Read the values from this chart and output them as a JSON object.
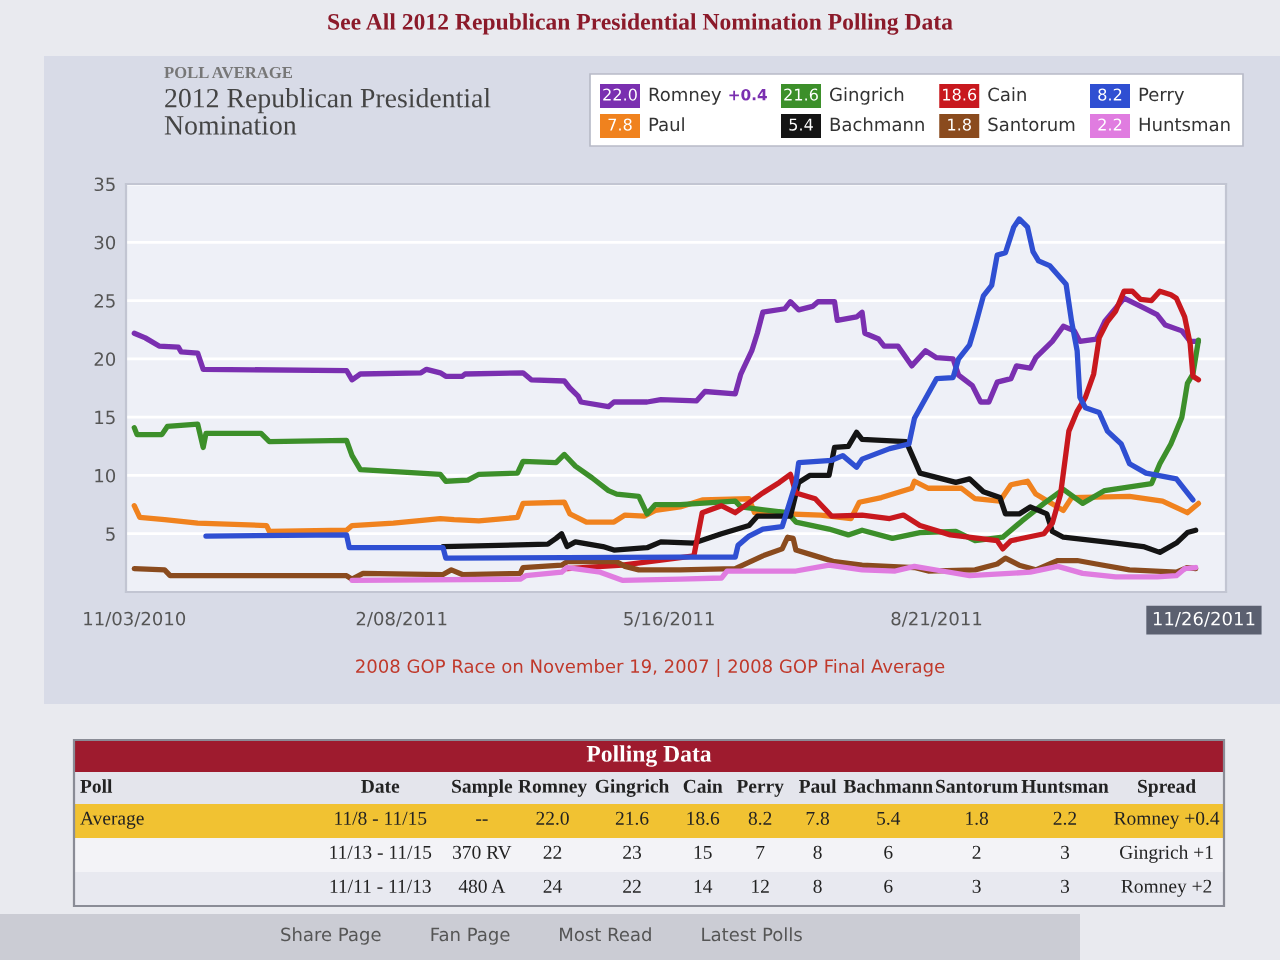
{
  "chart_data": [
    {
      "type": "line",
      "title": "2012 Republican Presidential\nNomination",
      "subtitle": "POLL AVERAGE",
      "annotations": [
        "See All 2012 Republican Presidential Nomination Polling Data",
        "2008 GOP Race on November 19, 2007 | 2008 GOP Final Average",
        "22.0",
        "7.8",
        "21.6",
        "5.4",
        "18.6",
        "1.8",
        "8.2",
        "2.2",
        "+0.4"
      ],
      "xlim": [
        "2010-10-31",
        "2011-12-04"
      ],
      "xticks": [
        {
          "value": "2010-11-03",
          "label": "11/03/2010"
        },
        {
          "value": "2011-02-08",
          "label": "2/08/2011"
        },
        {
          "value": "2011-05-16",
          "label": "5/16/2011"
        },
        {
          "value": "2011-08-21",
          "label": "8/21/2011"
        },
        {
          "value": "2011-11-26",
          "label": "11/26/2011"
        }
      ],
      "ylim": [
        0,
        35
      ],
      "yticks": [
        5,
        10,
        15,
        20,
        25,
        30,
        35
      ],
      "grid": "y",
      "legend": "top right",
      "line_style": "solid",
      "series": [
        {
          "name": "Romney",
          "color": "#7a2fb0",
          "x": [
            "2010-11-03",
            "2010-11-07",
            "2010-11-12",
            "2010-11-19",
            "2010-11-20",
            "2010-11-26",
            "2010-11-28",
            "2011-01-19",
            "2011-01-21",
            "2011-01-24",
            "2011-02-15",
            "2011-02-17",
            "2011-02-22",
            "2011-02-24",
            "2011-03-02",
            "2011-03-03",
            "2011-03-24",
            "2011-03-27",
            "2011-04-08",
            "2011-04-10",
            "2011-04-13",
            "2011-04-14",
            "2011-04-24",
            "2011-04-26",
            "2011-05-08",
            "2011-05-13",
            "2011-05-26",
            "2011-05-29",
            "2011-06-09",
            "2011-06-11",
            "2011-06-12",
            "2011-06-15",
            "2011-06-17",
            "2011-06-19",
            "2011-06-27",
            "2011-06-29",
            "2011-07-02",
            "2011-07-07",
            "2011-07-09",
            "2011-07-15",
            "2011-07-16",
            "2011-07-23",
            "2011-07-25",
            "2011-07-26",
            "2011-07-31",
            "2011-08-02",
            "2011-08-07",
            "2011-08-12",
            "2011-08-17",
            "2011-08-21",
            "2011-08-27",
            "2011-08-29",
            "2011-09-03",
            "2011-09-06",
            "2011-09-09",
            "2011-09-12",
            "2011-09-17",
            "2011-09-19",
            "2011-09-24",
            "2011-09-26",
            "2011-10-02",
            "2011-10-06",
            "2011-10-10",
            "2011-10-12",
            "2011-10-18",
            "2011-10-21",
            "2011-10-28",
            "2011-11-04",
            "2011-11-09",
            "2011-11-12",
            "2011-11-18",
            "2011-11-21",
            "2011-11-24"
          ],
          "values": [
            22.2,
            21.8,
            21.1,
            21.0,
            20.6,
            20.5,
            19.1,
            19.0,
            18.2,
            18.7,
            18.8,
            19.1,
            18.8,
            18.5,
            18.5,
            18.7,
            18.8,
            18.2,
            18.1,
            17.5,
            16.8,
            16.3,
            15.9,
            16.3,
            16.3,
            16.5,
            16.4,
            17.2,
            17.0,
            18.7,
            19.2,
            20.7,
            22.2,
            24.0,
            24.3,
            24.9,
            24.2,
            24.5,
            24.9,
            24.9,
            23.3,
            23.6,
            24.0,
            22.2,
            21.7,
            21.1,
            21.1,
            19.4,
            20.7,
            20.1,
            20.0,
            18.6,
            17.7,
            16.3,
            16.3,
            18.0,
            18.3,
            19.4,
            19.2,
            20.1,
            21.5,
            22.8,
            22.4,
            21.5,
            21.7,
            23.2,
            25.2,
            24.4,
            23.8,
            22.9,
            22.4,
            21.5,
            21.5
          ]
        },
        {
          "name": "Paul",
          "color": "#f0821e",
          "x": [
            "2010-11-03",
            "2010-11-05",
            "2010-11-14",
            "2010-11-26",
            "2010-12-21",
            "2010-12-22",
            "2011-01-19",
            "2011-01-21",
            "2011-02-05",
            "2011-02-22",
            "2011-02-27",
            "2011-03-08",
            "2011-03-22",
            "2011-03-24",
            "2011-04-08",
            "2011-04-10",
            "2011-04-16",
            "2011-04-26",
            "2011-04-30",
            "2011-05-07",
            "2011-05-11",
            "2011-05-20",
            "2011-05-28",
            "2011-06-14",
            "2011-06-16",
            "2011-07-10",
            "2011-07-21",
            "2011-07-24",
            "2011-08-01",
            "2011-08-12",
            "2011-08-13",
            "2011-08-18",
            "2011-08-30",
            "2011-09-04",
            "2011-09-13",
            "2011-09-17",
            "2011-09-23",
            "2011-09-26",
            "2011-10-06",
            "2011-10-09",
            "2011-10-30",
            "2011-11-11",
            "2011-11-20",
            "2011-11-24"
          ],
          "values": [
            7.4,
            6.4,
            6.2,
            5.9,
            5.7,
            5.2,
            5.3,
            5.7,
            5.9,
            6.3,
            6.2,
            6.1,
            6.4,
            7.6,
            7.7,
            6.7,
            6.0,
            6.0,
            6.6,
            6.5,
            7.0,
            7.3,
            7.9,
            8.0,
            6.8,
            6.6,
            6.3,
            7.7,
            8.1,
            8.9,
            9.5,
            8.9,
            8.9,
            8.0,
            7.8,
            9.2,
            9.5,
            8.4,
            7.0,
            8.1,
            8.2,
            7.8,
            6.8,
            7.6
          ]
        },
        {
          "name": "Gingrich",
          "color": "#3c8f2a",
          "x": [
            "2010-11-03",
            "2010-11-04",
            "2010-11-13",
            "2010-11-15",
            "2010-11-26",
            "2010-11-28",
            "2010-11-29",
            "2010-12-19",
            "2010-12-22",
            "2011-01-19",
            "2011-01-21",
            "2011-01-24",
            "2011-02-07",
            "2011-02-22",
            "2011-02-24",
            "2011-03-04",
            "2011-03-08",
            "2011-03-22",
            "2011-03-24",
            "2011-04-05",
            "2011-04-08",
            "2011-04-12",
            "2011-04-18",
            "2011-04-24",
            "2011-04-27",
            "2011-05-05",
            "2011-05-08",
            "2011-05-11",
            "2011-05-20",
            "2011-06-09",
            "2011-06-11",
            "2011-06-28",
            "2011-07-01",
            "2011-07-13",
            "2011-07-20",
            "2011-07-25",
            "2011-08-05",
            "2011-08-15",
            "2011-08-28",
            "2011-09-04",
            "2011-09-14",
            "2011-09-21",
            "2011-09-29",
            "2011-10-06",
            "2011-10-13",
            "2011-10-21",
            "2011-11-07",
            "2011-11-10",
            "2011-11-14",
            "2011-11-18",
            "2011-11-20",
            "2011-11-22",
            "2011-11-24"
          ],
          "values": [
            14.1,
            13.5,
            13.5,
            14.2,
            14.4,
            12.4,
            13.6,
            13.6,
            12.9,
            13.0,
            11.7,
            10.5,
            10.3,
            10.1,
            9.5,
            9.6,
            10.1,
            10.2,
            11.2,
            11.1,
            11.8,
            10.8,
            9.8,
            8.7,
            8.4,
            8.2,
            6.7,
            7.5,
            7.5,
            7.8,
            7.3,
            6.8,
            6.0,
            5.4,
            4.9,
            5.3,
            4.6,
            5.1,
            5.2,
            4.4,
            4.7,
            6.1,
            7.6,
            8.8,
            7.6,
            8.7,
            9.3,
            11.0,
            12.7,
            15.0,
            17.9,
            18.7,
            21.6
          ]
        },
        {
          "name": "Bachmann",
          "color": "#141414",
          "x": [
            "2011-02-23",
            "2011-04-02",
            "2011-04-05",
            "2011-04-07",
            "2011-04-09",
            "2011-04-12",
            "2011-04-22",
            "2011-04-26",
            "2011-05-08",
            "2011-05-13",
            "2011-05-25",
            "2011-06-04",
            "2011-06-14",
            "2011-06-17",
            "2011-06-29",
            "2011-07-02",
            "2011-07-06",
            "2011-07-13",
            "2011-07-15",
            "2011-07-20",
            "2011-07-23",
            "2011-07-25",
            "2011-08-10",
            "2011-08-15",
            "2011-08-28",
            "2011-09-02",
            "2011-09-07",
            "2011-09-13",
            "2011-09-15",
            "2011-09-20",
            "2011-09-24",
            "2011-09-30",
            "2011-10-02",
            "2011-10-06",
            "2011-10-25",
            "2011-11-04",
            "2011-11-10",
            "2011-11-16",
            "2011-11-20",
            "2011-11-23"
          ],
          "values": [
            3.9,
            4.1,
            4.6,
            5.0,
            3.9,
            4.3,
            3.9,
            3.6,
            3.8,
            4.3,
            4.2,
            5.0,
            5.7,
            6.5,
            6.5,
            9.4,
            10.0,
            10.0,
            12.4,
            12.5,
            13.7,
            13.1,
            12.9,
            10.2,
            9.4,
            9.7,
            8.6,
            8.1,
            6.7,
            6.7,
            7.3,
            6.7,
            5.2,
            4.7,
            4.2,
            3.9,
            3.4,
            4.2,
            5.1,
            5.3
          ]
        },
        {
          "name": "Cain",
          "color": "#c8181e",
          "x": [
            "2011-04-09",
            "2011-04-29",
            "2011-05-25",
            "2011-05-28",
            "2011-06-04",
            "2011-06-09",
            "2011-06-19",
            "2011-06-25",
            "2011-06-29",
            "2011-07-01",
            "2011-07-08",
            "2011-07-14",
            "2011-07-25",
            "2011-08-04",
            "2011-08-09",
            "2011-08-15",
            "2011-08-26",
            "2011-09-12",
            "2011-09-14",
            "2011-09-17",
            "2011-09-29",
            "2011-10-02",
            "2011-10-05",
            "2011-10-08",
            "2011-10-11",
            "2011-10-14",
            "2011-10-17",
            "2011-10-19",
            "2011-10-22",
            "2011-10-25",
            "2011-10-28",
            "2011-10-31",
            "2011-11-03",
            "2011-11-07",
            "2011-11-10",
            "2011-11-14",
            "2011-11-16",
            "2011-11-19",
            "2011-11-21",
            "2011-11-22",
            "2011-11-24"
          ],
          "values": [
            2.0,
            2.3,
            3.1,
            6.8,
            7.4,
            6.8,
            8.5,
            9.4,
            10.1,
            8.5,
            8.0,
            6.5,
            6.6,
            6.3,
            6.6,
            5.7,
            4.9,
            4.4,
            3.7,
            4.4,
            5.0,
            5.9,
            8.4,
            13.8,
            15.5,
            16.7,
            18.7,
            21.8,
            23.2,
            24.1,
            25.8,
            25.8,
            25.1,
            25.0,
            25.8,
            25.5,
            25.2,
            23.6,
            21.3,
            18.5,
            18.2
          ]
        },
        {
          "name": "Santorum",
          "color": "#8a4b1e",
          "x": [
            "2010-11-03",
            "2010-11-14",
            "2010-11-16",
            "2011-01-19",
            "2011-01-21",
            "2011-01-25",
            "2011-02-23",
            "2011-02-26",
            "2011-03-02",
            "2011-03-23",
            "2011-03-24",
            "2011-04-07",
            "2011-04-09",
            "2011-04-27",
            "2011-04-30",
            "2011-05-05",
            "2011-05-20",
            "2011-06-09",
            "2011-06-19",
            "2011-06-26",
            "2011-06-28",
            "2011-06-30",
            "2011-07-01",
            "2011-07-08",
            "2011-07-15",
            "2011-07-25",
            "2011-08-13",
            "2011-08-18",
            "2011-09-04",
            "2011-09-12",
            "2011-09-15",
            "2011-09-20",
            "2011-09-26",
            "2011-10-04",
            "2011-10-11",
            "2011-10-18",
            "2011-10-30",
            "2011-11-16",
            "2011-11-20",
            "2011-11-23"
          ],
          "values": [
            2.0,
            1.9,
            1.4,
            1.4,
            1.1,
            1.6,
            1.5,
            1.9,
            1.5,
            1.6,
            2.1,
            2.3,
            2.6,
            2.6,
            2.2,
            1.9,
            1.9,
            2.0,
            3.1,
            3.7,
            4.7,
            4.6,
            3.6,
            3.1,
            2.6,
            2.3,
            2.1,
            1.8,
            1.9,
            2.4,
            2.9,
            2.3,
            1.9,
            2.7,
            2.7,
            2.4,
            1.9,
            1.7,
            2.1,
            2.0
          ]
        },
        {
          "name": "Perry",
          "color": "#2f4fd2",
          "x": [
            "2010-11-29",
            "2011-01-19",
            "2011-01-20",
            "2011-02-23",
            "2011-02-24",
            "2011-05-20",
            "2011-06-09",
            "2011-06-10",
            "2011-06-14",
            "2011-06-19",
            "2011-06-26",
            "2011-07-01",
            "2011-07-02",
            "2011-07-14",
            "2011-07-18",
            "2011-07-23",
            "2011-07-25",
            "2011-08-04",
            "2011-08-11",
            "2011-08-13",
            "2011-08-17",
            "2011-08-21",
            "2011-08-27",
            "2011-08-29",
            "2011-09-02",
            "2011-09-04",
            "2011-09-07",
            "2011-09-10",
            "2011-09-12",
            "2011-09-15",
            "2011-09-18",
            "2011-09-20",
            "2011-09-23",
            "2011-09-25",
            "2011-09-27",
            "2011-10-01",
            "2011-10-07",
            "2011-10-09",
            "2011-10-11",
            "2011-10-12",
            "2011-10-14",
            "2011-10-19",
            "2011-10-22",
            "2011-10-27",
            "2011-10-30",
            "2011-11-05",
            "2011-11-16",
            "2011-11-20",
            "2011-11-22"
          ],
          "values": [
            4.8,
            4.9,
            3.8,
            3.8,
            2.9,
            3.0,
            3.0,
            4.0,
            4.8,
            5.4,
            5.6,
            9.4,
            11.1,
            11.3,
            11.7,
            10.7,
            11.4,
            12.3,
            12.7,
            14.9,
            16.6,
            18.3,
            18.4,
            20.0,
            21.2,
            22.8,
            25.4,
            26.3,
            28.9,
            29.1,
            31.3,
            32.0,
            31.3,
            29.2,
            28.4,
            28.0,
            26.4,
            23.2,
            20.7,
            16.7,
            15.8,
            15.4,
            13.8,
            12.7,
            11.0,
            10.2,
            9.7,
            8.5,
            7.9
          ]
        },
        {
          "name": "Huntsman",
          "color": "#e07ce0",
          "x": [
            "2011-01-21",
            "2011-03-23",
            "2011-03-25",
            "2011-04-07",
            "2011-04-09",
            "2011-04-21",
            "2011-04-29",
            "2011-05-20",
            "2011-06-04",
            "2011-06-06",
            "2011-07-01",
            "2011-07-13",
            "2011-07-25",
            "2011-08-06",
            "2011-08-13",
            "2011-08-23",
            "2011-09-02",
            "2011-09-24",
            "2011-10-04",
            "2011-10-13",
            "2011-10-25",
            "2011-11-09",
            "2011-11-16",
            "2011-11-19",
            "2011-11-23"
          ],
          "values": [
            1.0,
            1.1,
            1.4,
            1.7,
            2.1,
            1.7,
            1.0,
            1.1,
            1.2,
            1.8,
            1.8,
            2.3,
            1.9,
            1.8,
            2.2,
            1.8,
            1.4,
            1.7,
            2.2,
            1.6,
            1.3,
            1.3,
            1.4,
            2.0,
            2.1
          ]
        }
      ]
    },
    {
      "type": "other",
      "title": "Polling Data",
      "ylabel": "Poll",
      "categories": [
        "Date",
        "Sample",
        "Romney",
        "Gingrich",
        "Cain",
        "Perry",
        "Paul",
        "Bachmann",
        "Santorum",
        "Huntsman",
        "Spread"
      ],
      "y_categories": [
        "Average",
        null,
        null
      ],
      "cell_labels": [
        [
          "11/8 - 11/15",
          "--",
          "22.0",
          "21.6",
          "18.6",
          "8.2",
          "7.8",
          "5.4",
          "1.8",
          "2.2",
          "Romney +0.4"
        ],
        [
          "11/13 - 11/15",
          "370 RV",
          "22",
          "23",
          "15",
          "7",
          "8",
          "6",
          "2",
          "3",
          "Gingrich +1"
        ],
        [
          "11/11 - 11/13",
          "480 A",
          "24",
          "22",
          "14",
          "12",
          "8",
          "6",
          "3",
          "3",
          "Romney +2"
        ]
      ],
      "annotations": [
        "Share Page",
        "Fan Page",
        "Most Read",
        "Latest Polls"
      ]
    }
  ]
}
